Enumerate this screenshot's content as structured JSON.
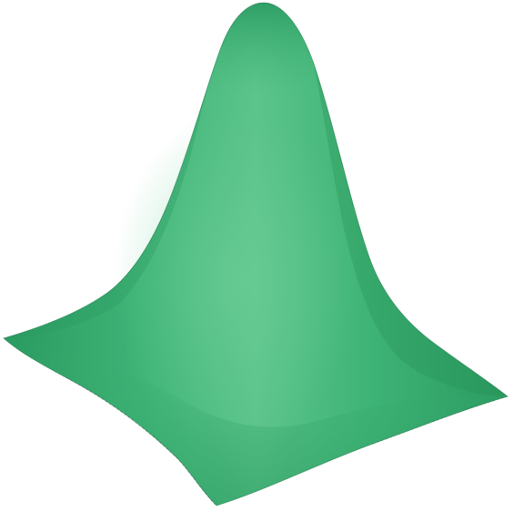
{
  "image": {
    "subject": "gaussian-peak-surface",
    "colors": {
      "background": "#ffffff",
      "surface_light": "#5cc48a",
      "surface_mid": "#3fb477",
      "surface_dark": "#2a9a60",
      "edge_shadow": "#1f7a4a",
      "fringe": "#6e7a72"
    }
  }
}
